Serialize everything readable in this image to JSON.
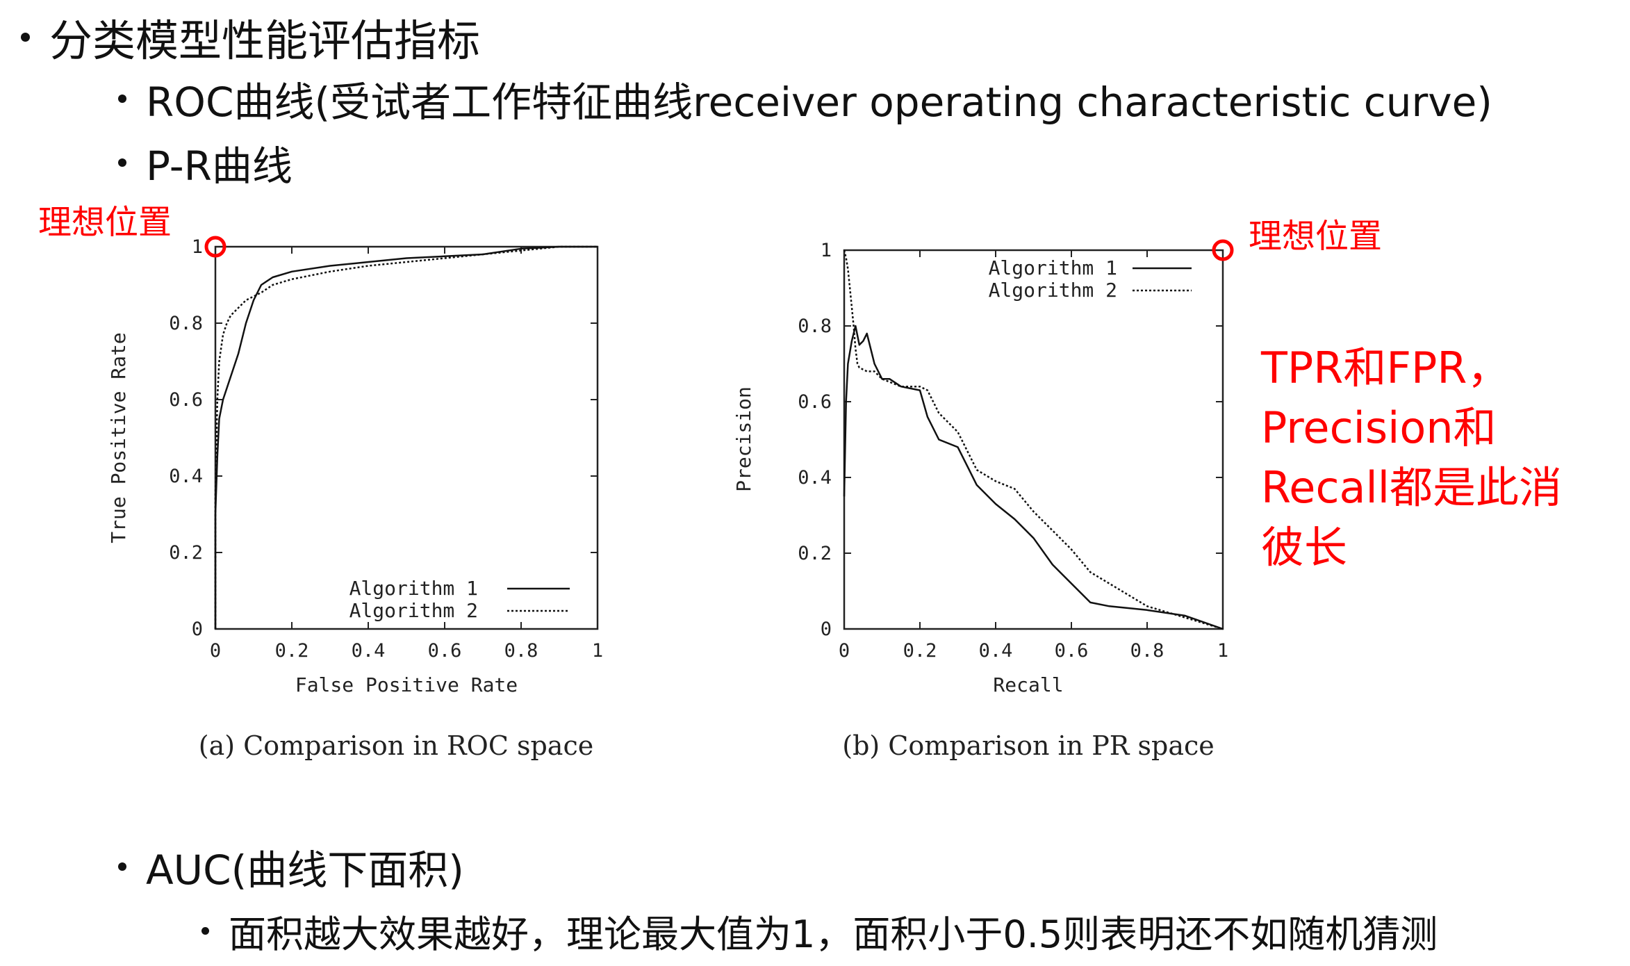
{
  "bullets": {
    "b1": "分类模型性能评估指标",
    "b2": "ROC曲线(受试者工作特征曲线receiver operating characteristic curve)",
    "b3": "P-R曲线",
    "b4": "AUC(曲线下面积)",
    "b5": "面积越大效果越好，理论最大值为1，面积小于0.5则表明还不如随机猜测"
  },
  "annotations": {
    "ideal_left": "理想位置",
    "ideal_right": "理想位置",
    "note_lines": [
      "TPR和FPR，",
      "Precision和",
      "Recall都是此消",
      "彼长"
    ],
    "accent_color": "#ff0000"
  },
  "chart_data": [
    {
      "type": "line",
      "caption": "(a) Comparison in ROC space",
      "xlabel": "False Positive Rate",
      "ylabel": "True Positive Rate",
      "xlim": [
        0,
        1
      ],
      "ylim": [
        0,
        1
      ],
      "xticks": [
        "0",
        "0.2",
        "0.4",
        "0.6",
        "0.8",
        "1"
      ],
      "yticks": [
        "0",
        "0.2",
        "0.4",
        "0.6",
        "0.8",
        "1"
      ],
      "legend_position": "bottom-right",
      "grid": false,
      "series": [
        {
          "name": "Algorithm 1",
          "style": "solid",
          "x": [
            0,
            0.0,
            0.005,
            0.01,
            0.02,
            0.03,
            0.04,
            0.06,
            0.08,
            0.1,
            0.12,
            0.15,
            0.2,
            0.3,
            0.4,
            0.5,
            0.6,
            0.7,
            0.8,
            0.9,
            1.0
          ],
          "y": [
            0,
            0.3,
            0.45,
            0.55,
            0.6,
            0.63,
            0.66,
            0.72,
            0.8,
            0.86,
            0.9,
            0.92,
            0.935,
            0.95,
            0.96,
            0.97,
            0.975,
            0.98,
            0.995,
            1.0,
            1.0
          ]
        },
        {
          "name": "Algorithm 2",
          "style": "dotted",
          "x": [
            0,
            0.0,
            0.005,
            0.01,
            0.02,
            0.03,
            0.04,
            0.06,
            0.08,
            0.1,
            0.12,
            0.15,
            0.2,
            0.3,
            0.4,
            0.5,
            0.6,
            0.7,
            0.8,
            0.9,
            1.0
          ],
          "y": [
            0,
            0.35,
            0.6,
            0.7,
            0.77,
            0.8,
            0.82,
            0.84,
            0.86,
            0.87,
            0.88,
            0.9,
            0.915,
            0.935,
            0.95,
            0.96,
            0.97,
            0.98,
            0.99,
            1.0,
            1.0
          ]
        }
      ]
    },
    {
      "type": "line",
      "caption": "(b) Comparison in PR space",
      "xlabel": "Recall",
      "ylabel": "Precision",
      "xlim": [
        0,
        1
      ],
      "ylim": [
        0,
        1
      ],
      "xticks": [
        "0",
        "0.2",
        "0.4",
        "0.6",
        "0.8",
        "1"
      ],
      "yticks": [
        "0",
        "0.2",
        "0.4",
        "0.6",
        "0.8",
        "1"
      ],
      "legend_position": "top-right",
      "grid": false,
      "series": [
        {
          "name": "Algorithm 1",
          "style": "solid",
          "x": [
            0.0,
            0.005,
            0.01,
            0.02,
            0.03,
            0.04,
            0.05,
            0.06,
            0.08,
            0.1,
            0.12,
            0.15,
            0.2,
            0.22,
            0.25,
            0.3,
            0.33,
            0.35,
            0.4,
            0.45,
            0.5,
            0.55,
            0.6,
            0.65,
            0.7,
            0.8,
            0.9,
            1.0
          ],
          "y": [
            0.35,
            0.6,
            0.7,
            0.76,
            0.8,
            0.75,
            0.76,
            0.78,
            0.7,
            0.66,
            0.66,
            0.64,
            0.63,
            0.56,
            0.5,
            0.48,
            0.42,
            0.38,
            0.33,
            0.29,
            0.24,
            0.17,
            0.12,
            0.07,
            0.06,
            0.05,
            0.035,
            0.0
          ]
        },
        {
          "name": "Algorithm 2",
          "style": "dotted",
          "x": [
            0.0,
            0.005,
            0.01,
            0.015,
            0.02,
            0.025,
            0.03,
            0.035,
            0.04,
            0.06,
            0.08,
            0.1,
            0.15,
            0.2,
            0.22,
            0.25,
            0.3,
            0.33,
            0.35,
            0.4,
            0.45,
            0.5,
            0.55,
            0.6,
            0.65,
            0.7,
            0.8,
            0.9,
            1.0
          ],
          "y": [
            1.0,
            0.98,
            0.95,
            0.9,
            0.85,
            0.8,
            0.74,
            0.7,
            0.69,
            0.68,
            0.68,
            0.66,
            0.64,
            0.64,
            0.63,
            0.57,
            0.52,
            0.46,
            0.42,
            0.39,
            0.37,
            0.31,
            0.26,
            0.21,
            0.15,
            0.12,
            0.06,
            0.03,
            0.0
          ]
        }
      ]
    }
  ]
}
